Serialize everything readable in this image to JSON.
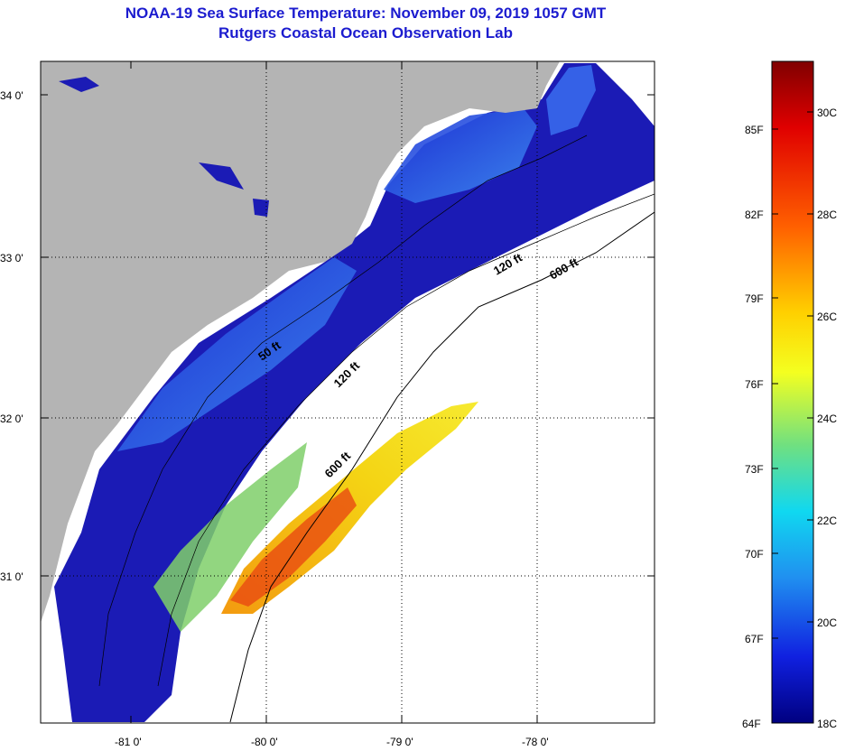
{
  "title": {
    "line1": "NOAA-19 Sea Surface Temperature:  November 09, 2019 1057 GMT",
    "line2": "Rutgers Coastal Ocean Observation Lab"
  },
  "map": {
    "lat_ticks": [
      "34 0'",
      "33 0'",
      "32 0'",
      "31 0'"
    ],
    "lon_ticks": [
      "-81 0'",
      "-80 0'",
      "-79 0'",
      "-78 0'"
    ],
    "contour_labels": [
      "50 ft",
      "120 ft",
      "120 ft",
      "600 ft",
      "600 ft"
    ],
    "colors": {
      "land": "#b4b4b4",
      "ocean_frame": "#ffffff"
    }
  },
  "colorbar": {
    "fahrenheit_labels": [
      "85F",
      "82F",
      "79F",
      "76F",
      "73F",
      "70F",
      "67F",
      "64F"
    ],
    "celsius_labels": [
      "30C",
      "28C",
      "26C",
      "24C",
      "22C",
      "20C",
      "18C"
    ],
    "colors": [
      "#800000",
      "#ff0000",
      "#ff8000",
      "#ffff00",
      "#80ff80",
      "#00ffff",
      "#0080ff",
      "#0000ff",
      "#000080"
    ]
  }
}
